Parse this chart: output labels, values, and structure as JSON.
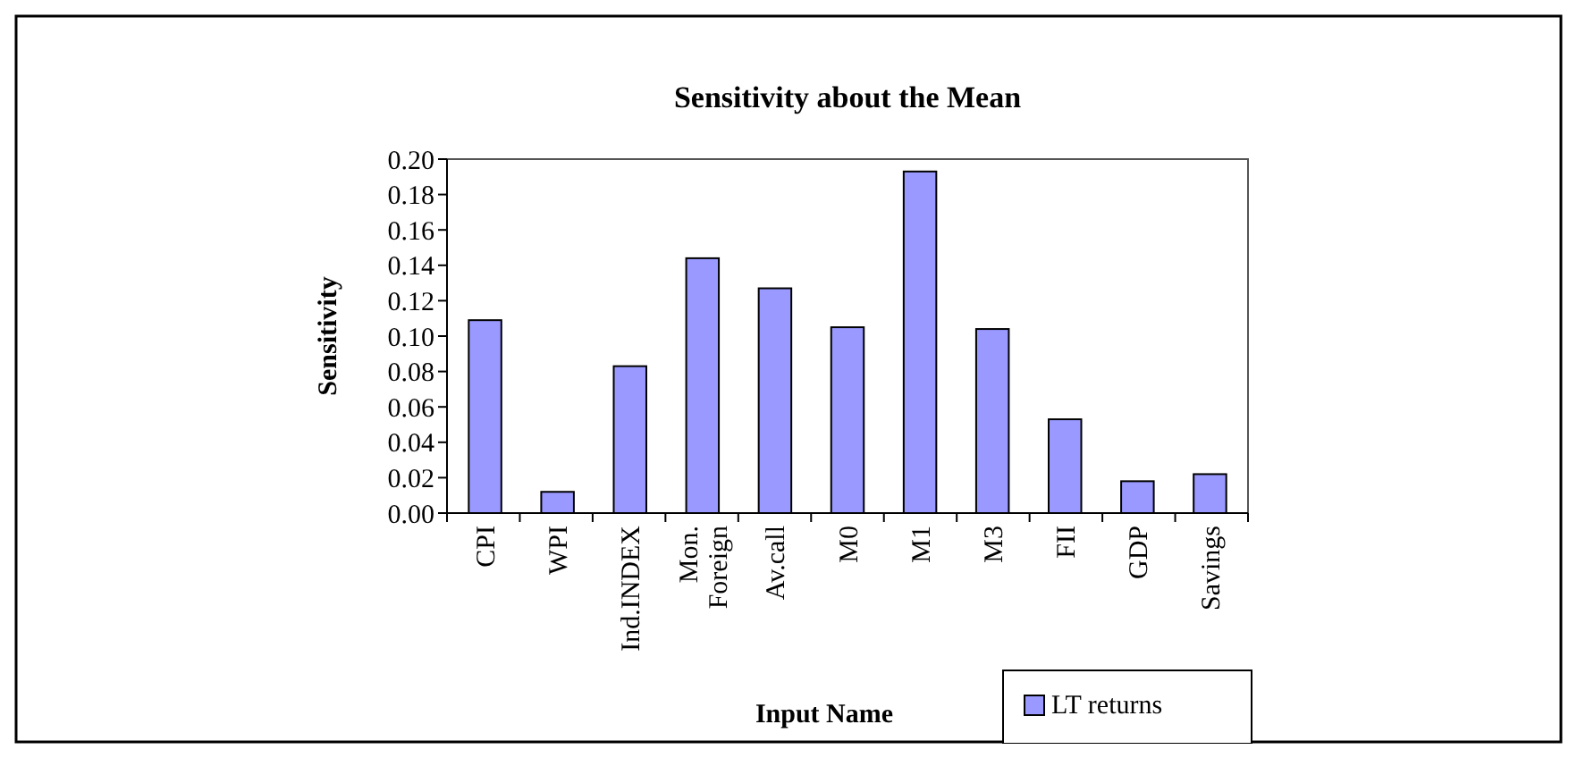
{
  "chart_data": {
    "type": "bar",
    "title": "Sensitivity about the Mean",
    "xlabel": "Input Name",
    "ylabel": "Sensitivity",
    "categories": [
      "CPI",
      "WPI",
      "Ind.INDEX",
      "Mon. Foreign",
      "Av.call",
      "M0",
      "M1",
      "M3",
      "FII",
      "GDP",
      "Savings"
    ],
    "series": [
      {
        "name": "LT returns",
        "color": "#9999ff",
        "values": [
          0.109,
          0.012,
          0.083,
          0.144,
          0.127,
          0.105,
          0.193,
          0.104,
          0.053,
          0.018,
          0.022
        ]
      }
    ],
    "ylim": [
      0,
      0.2
    ],
    "yticks": [
      {
        "value": 0,
        "label": "0.00"
      },
      {
        "value": 0.02,
        "label": "0.02"
      },
      {
        "value": 0.04,
        "label": "0.04"
      },
      {
        "value": 0.06,
        "label": "0.06"
      },
      {
        "value": 0.08,
        "label": "0.08"
      },
      {
        "value": 0.1,
        "label": "0.10"
      },
      {
        "value": 0.12,
        "label": "0.12"
      },
      {
        "value": 0.14,
        "label": "0.14"
      },
      {
        "value": 0.16,
        "label": "0.16"
      },
      {
        "value": 0.18,
        "label": "0.18"
      },
      {
        "value": 0.2,
        "label": "0.20"
      }
    ],
    "grid": false,
    "legend": "bottom right"
  }
}
